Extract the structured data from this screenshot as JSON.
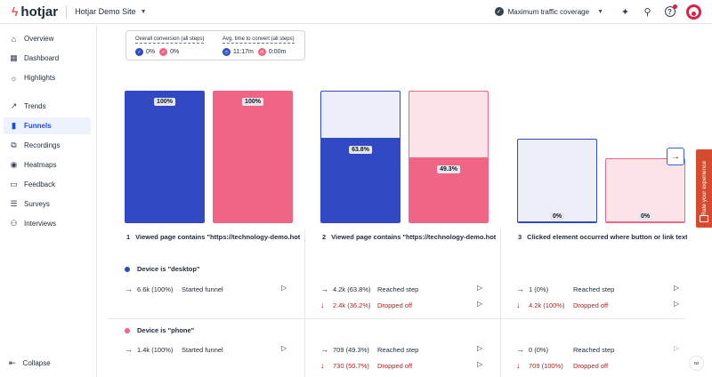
{
  "brand": {
    "name": "hotjar"
  },
  "site": {
    "name": "Hotjar Demo Site"
  },
  "traffic": {
    "label": "Maximum traffic coverage"
  },
  "nav": [
    {
      "label": "Overview",
      "icon": "overview-icon",
      "glyph": "⌂"
    },
    {
      "label": "Dashboard",
      "icon": "dashboard-icon",
      "glyph": "▦"
    },
    {
      "label": "Highlights",
      "icon": "lightbulb-icon",
      "glyph": "☼"
    },
    {
      "label": "Trends",
      "icon": "trends-icon",
      "glyph": "↗"
    },
    {
      "label": "Funnels",
      "icon": "funnels-icon",
      "glyph": "▮",
      "active": true
    },
    {
      "label": "Recordings",
      "icon": "recordings-icon",
      "glyph": "⧉"
    },
    {
      "label": "Heatmaps",
      "icon": "heatmaps-icon",
      "glyph": "◉"
    },
    {
      "label": "Feedback",
      "icon": "feedback-icon",
      "glyph": "▭"
    },
    {
      "label": "Surveys",
      "icon": "surveys-icon",
      "glyph": "☰"
    },
    {
      "label": "Interviews",
      "icon": "interviews-icon",
      "glyph": "⚇"
    }
  ],
  "collapse_label": "Collapse",
  "summary": {
    "conversion_label": "Overall conversion (all steps)",
    "conversion_desktop": "0%",
    "conversion_phone": "0%",
    "time_label": "Avg. time to convert (all steps)",
    "time_desktop": "11:17m",
    "time_phone": "0:00m"
  },
  "colors": {
    "desktop": "#3149c3",
    "phone": "#f06485",
    "desktop_light": "#eceef8",
    "phone_light": "#fbe3e8"
  },
  "chart_data": {
    "type": "bar",
    "categories": [
      "Viewed page contains \"https://technology-demo.hotj...",
      "Viewed page contains \"https://technology-demo.hotj...",
      "Clicked element occurred where button or link text co..."
    ],
    "series": [
      {
        "name": "Device is \"desktop\"",
        "values": [
          100,
          63.8,
          0
        ],
        "labels": [
          "100%",
          "63.8%",
          "0%"
        ]
      },
      {
        "name": "Device is \"phone\"",
        "values": [
          100,
          49.3,
          0
        ],
        "labels": [
          "100%",
          "49.3%",
          "0%"
        ]
      }
    ],
    "ylim": [
      0,
      100
    ]
  },
  "steps": [
    {
      "num": "1",
      "title": "Viewed page contains \"https://technology-demo.hotj..."
    },
    {
      "num": "2",
      "title": "Viewed page contains \"https://technology-demo.hotj..."
    },
    {
      "num": "3",
      "title": "Clicked element occurred where button or link text co..."
    }
  ],
  "devices": [
    {
      "label": "Device is \"desktop\"",
      "step1": {
        "value": "6.6k (100%)",
        "label": "Started funnel"
      },
      "step2": {
        "reached": "4.2k (63.8%)",
        "reached_label": "Reached step",
        "dropped": "2.4k (36.2%)",
        "dropped_label": "Dropped off"
      },
      "step3": {
        "reached": "1 (0%)",
        "reached_label": "Reached step",
        "dropped": "4.2k (100%)",
        "dropped_label": "Dropped off"
      }
    },
    {
      "label": "Device is \"phone\"",
      "step1": {
        "value": "1.4k (100%)",
        "label": "Started funnel"
      },
      "step2": {
        "reached": "709 (49.3%)",
        "reached_label": "Reached step",
        "dropped": "730 (50.7%)",
        "dropped_label": "Dropped off"
      },
      "step3": {
        "reached": "0 (0%)",
        "reached_label": "Reached step",
        "dropped": "709 (100%)",
        "dropped_label": "Dropped off"
      }
    }
  ],
  "rate_label": "Rate your experience"
}
